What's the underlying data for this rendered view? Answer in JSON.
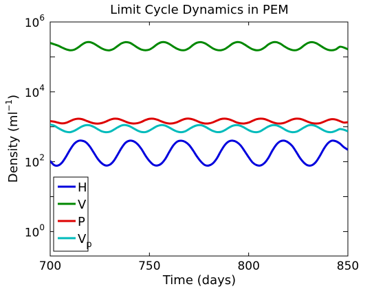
{
  "chart_data": {
    "type": "line",
    "title": "Limit Cycle Dynamics in PEM",
    "xlabel": "Time (days)",
    "ylabel": {
      "main": "Density (ml",
      "sup": "−1",
      "end": ")"
    },
    "xlim": [
      700,
      850
    ],
    "ylim": [
      0.2,
      1000000
    ],
    "yscale": "log",
    "grid": false,
    "legend_location": "bottom-left",
    "xticks": [
      700,
      750,
      800,
      850
    ],
    "xtick_labels": [
      "700",
      "750",
      "800",
      "850"
    ],
    "yticks": [
      1,
      100,
      10000,
      1000000
    ],
    "ytick_labels": [
      {
        "base": "10",
        "exp": "0"
      },
      {
        "base": "10",
        "exp": "2"
      },
      {
        "base": "10",
        "exp": "4"
      },
      {
        "base": "10",
        "exp": "6"
      }
    ],
    "series": [
      {
        "name": "H",
        "legend_label": {
          "main": "H",
          "sub": ""
        },
        "color": "#0000dd",
        "x": [
          700,
          702,
          704,
          706,
          708,
          710,
          712,
          714,
          716,
          718,
          720,
          722,
          724,
          726,
          728,
          730,
          732,
          734,
          736,
          738,
          740,
          742,
          744,
          746,
          748,
          750,
          752,
          754,
          756,
          758,
          760,
          762,
          764,
          766,
          768,
          770,
          772,
          774,
          776,
          778,
          780,
          782,
          784,
          786,
          788,
          790,
          792,
          794,
          796,
          798,
          800,
          802,
          804,
          806,
          808,
          810,
          812,
          814,
          816,
          818,
          820,
          822,
          824,
          826,
          828,
          830,
          832,
          834,
          836,
          838,
          840,
          842,
          844,
          846,
          848,
          850
        ],
        "y": [
          105,
          80,
          78,
          95,
          140,
          220,
          320,
          390,
          400,
          360,
          270,
          180,
          120,
          90,
          78,
          82,
          105,
          160,
          250,
          350,
          400,
          385,
          320,
          230,
          150,
          105,
          82,
          78,
          88,
          120,
          190,
          290,
          375,
          400,
          370,
          300,
          210,
          140,
          100,
          80,
          78,
          90,
          125,
          200,
          300,
          380,
          400,
          365,
          290,
          200,
          135,
          95,
          80,
          78,
          92,
          130,
          210,
          310,
          385,
          400,
          355,
          280,
          190,
          125,
          92,
          78,
          80,
          100,
          150,
          240,
          340,
          400,
          385,
          330,
          260,
          220
        ]
      },
      {
        "name": "V",
        "legend_label": {
          "main": "V",
          "sub": ""
        },
        "color": "#008800",
        "x": [
          700,
          702,
          704,
          706,
          708,
          710,
          712,
          714,
          716,
          718,
          720,
          722,
          724,
          726,
          728,
          730,
          732,
          734,
          736,
          738,
          740,
          742,
          744,
          746,
          748,
          750,
          752,
          754,
          756,
          758,
          760,
          762,
          764,
          766,
          768,
          770,
          772,
          774,
          776,
          778,
          780,
          782,
          784,
          786,
          788,
          790,
          792,
          794,
          796,
          798,
          800,
          802,
          804,
          806,
          808,
          810,
          812,
          814,
          816,
          818,
          820,
          822,
          824,
          826,
          828,
          830,
          832,
          834,
          836,
          838,
          840,
          842,
          844,
          846,
          848,
          850
        ],
        "y": [
          250000,
          230000,
          210000,
          185000,
          165000,
          155000,
          160000,
          185000,
          225000,
          260000,
          265000,
          240000,
          205000,
          175000,
          158000,
          155000,
          170000,
          205000,
          245000,
          265000,
          255000,
          220000,
          185000,
          162000,
          155000,
          162000,
          190000,
          232000,
          262000,
          262000,
          235000,
          198000,
          170000,
          156000,
          157000,
          178000,
          220000,
          255000,
          265000,
          245000,
          208000,
          175000,
          158000,
          155000,
          168000,
          200000,
          242000,
          265000,
          258000,
          225000,
          190000,
          165000,
          155000,
          160000,
          185000,
          228000,
          260000,
          264000,
          238000,
          200000,
          172000,
          157000,
          156000,
          175000,
          215000,
          252000,
          265000,
          248000,
          212000,
          180000,
          160000,
          155000,
          165000,
          195000,
          185000,
          165000
        ]
      },
      {
        "name": "P",
        "legend_label": {
          "main": "P",
          "sub": ""
        },
        "color": "#dd0000",
        "x": [
          700,
          702,
          704,
          706,
          708,
          710,
          712,
          714,
          716,
          718,
          720,
          722,
          724,
          726,
          728,
          730,
          732,
          734,
          736,
          738,
          740,
          742,
          744,
          746,
          748,
          750,
          752,
          754,
          756,
          758,
          760,
          762,
          764,
          766,
          768,
          770,
          772,
          774,
          776,
          778,
          780,
          782,
          784,
          786,
          788,
          790,
          792,
          794,
          796,
          798,
          800,
          802,
          804,
          806,
          808,
          810,
          812,
          814,
          816,
          818,
          820,
          822,
          824,
          826,
          828,
          830,
          832,
          834,
          836,
          838,
          840,
          842,
          844,
          846,
          848,
          850
        ],
        "y": [
          1450,
          1400,
          1310,
          1250,
          1300,
          1450,
          1620,
          1700,
          1650,
          1500,
          1360,
          1260,
          1230,
          1280,
          1400,
          1580,
          1700,
          1690,
          1560,
          1400,
          1280,
          1240,
          1270,
          1380,
          1560,
          1690,
          1700,
          1590,
          1430,
          1300,
          1240,
          1260,
          1360,
          1530,
          1680,
          1710,
          1620,
          1460,
          1310,
          1240,
          1250,
          1340,
          1500,
          1660,
          1710,
          1640,
          1490,
          1330,
          1250,
          1245,
          1320,
          1480,
          1650,
          1710,
          1660,
          1510,
          1350,
          1255,
          1240,
          1300,
          1450,
          1620,
          1705,
          1680,
          1540,
          1380,
          1270,
          1235,
          1270,
          1400,
          1560,
          1650,
          1600,
          1450,
          1320,
          1350
        ]
      },
      {
        "name": "Vp",
        "legend_label": {
          "main": "V",
          "sub": "p"
        },
        "color": "#00bbbb",
        "x": [
          700,
          702,
          704,
          706,
          708,
          710,
          712,
          714,
          716,
          718,
          720,
          722,
          724,
          726,
          728,
          730,
          732,
          734,
          736,
          738,
          740,
          742,
          744,
          746,
          748,
          750,
          752,
          754,
          756,
          758,
          760,
          762,
          764,
          766,
          768,
          770,
          772,
          774,
          776,
          778,
          780,
          782,
          784,
          786,
          788,
          790,
          792,
          794,
          796,
          798,
          800,
          802,
          804,
          806,
          808,
          810,
          812,
          814,
          816,
          818,
          820,
          822,
          824,
          826,
          828,
          830,
          832,
          834,
          836,
          838,
          840,
          842,
          844,
          846,
          848,
          850
        ],
        "y": [
          1150,
          1080,
          920,
          800,
          720,
          700,
          760,
          880,
          1020,
          1110,
          1100,
          990,
          850,
          740,
          700,
          720,
          820,
          960,
          1090,
          1120,
          1040,
          900,
          780,
          710,
          705,
          780,
          910,
          1050,
          1120,
          1080,
          950,
          820,
          730,
          700,
          740,
          860,
          1000,
          1100,
          1110,
          1010,
          870,
          760,
          705,
          715,
          800,
          940,
          1070,
          1120,
          1060,
          930,
          800,
          720,
          700,
          750,
          880,
          1020,
          1110,
          1100,
          990,
          850,
          745,
          700,
          720,
          820,
          960,
          1090,
          1120,
          1040,
          900,
          780,
          710,
          705,
          770,
          860,
          820,
          740
        ]
      }
    ]
  }
}
